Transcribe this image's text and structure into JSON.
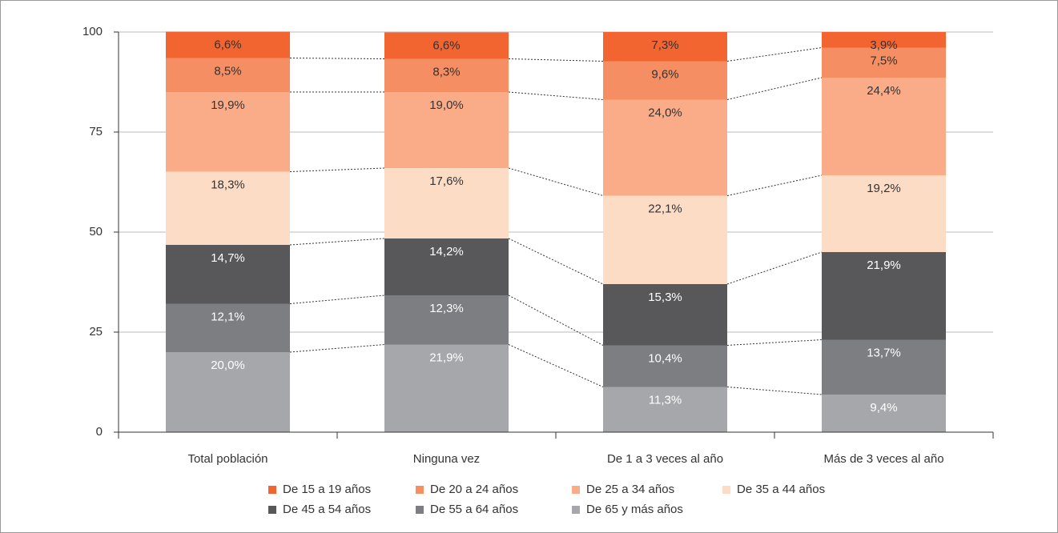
{
  "chart_data": {
    "type": "stacked_bar",
    "categories": [
      "Total población",
      "Ninguna vez",
      "De 1 a 3 veces al año",
      "Más de 3 veces al año"
    ],
    "series": [
      {
        "name": "De 15 a 19 años",
        "color": "#f26531",
        "label_color": "#333333",
        "values": [
          6.6,
          6.6,
          7.3,
          3.9
        ],
        "value_labels": [
          "6,6%",
          "6,6%",
          "7,3%",
          "3,9%"
        ]
      },
      {
        "name": "De 20 a 24 años",
        "color": "#f58e62",
        "label_color": "#333333",
        "values": [
          8.5,
          8.3,
          9.6,
          7.5
        ],
        "value_labels": [
          "8,5%",
          "8,3%",
          "9,6%",
          "7,5%"
        ]
      },
      {
        "name": "De 25 a 34 años",
        "color": "#f9ac87",
        "label_color": "#333333",
        "values": [
          19.9,
          19.0,
          24.0,
          24.4
        ],
        "value_labels": [
          "19,9%",
          "19,0%",
          "24,0%",
          "24,4%"
        ]
      },
      {
        "name": "De 35 a 44 años",
        "color": "#fddcc6",
        "label_color": "#333333",
        "values": [
          18.3,
          17.6,
          22.1,
          19.2
        ],
        "value_labels": [
          "18,3%",
          "17,6%",
          "22,1%",
          "19,2%"
        ]
      },
      {
        "name": "De 45 a 54 años",
        "color": "#58585a",
        "label_color": "#ffffff",
        "values": [
          14.7,
          14.2,
          15.3,
          21.9
        ],
        "value_labels": [
          "14,7%",
          "14,2%",
          "15,3%",
          "21,9%"
        ]
      },
      {
        "name": "De 55 a 64 años",
        "color": "#7d7e82",
        "label_color": "#ffffff",
        "values": [
          12.1,
          12.3,
          10.4,
          13.7
        ],
        "value_labels": [
          "12,1%",
          "12,3%",
          "10,4%",
          "13,7%"
        ]
      },
      {
        "name": "De 65 y más años",
        "color": "#a6a7ab",
        "label_color": "#ffffff",
        "values": [
          20.0,
          21.9,
          11.3,
          9.4
        ],
        "value_labels": [
          "20,0%",
          "21,9%",
          "11,3%",
          "9,4%"
        ]
      }
    ],
    "ylim": [
      0,
      100
    ],
    "yticks": [
      0,
      25,
      50,
      75,
      100
    ],
    "grid": true
  }
}
